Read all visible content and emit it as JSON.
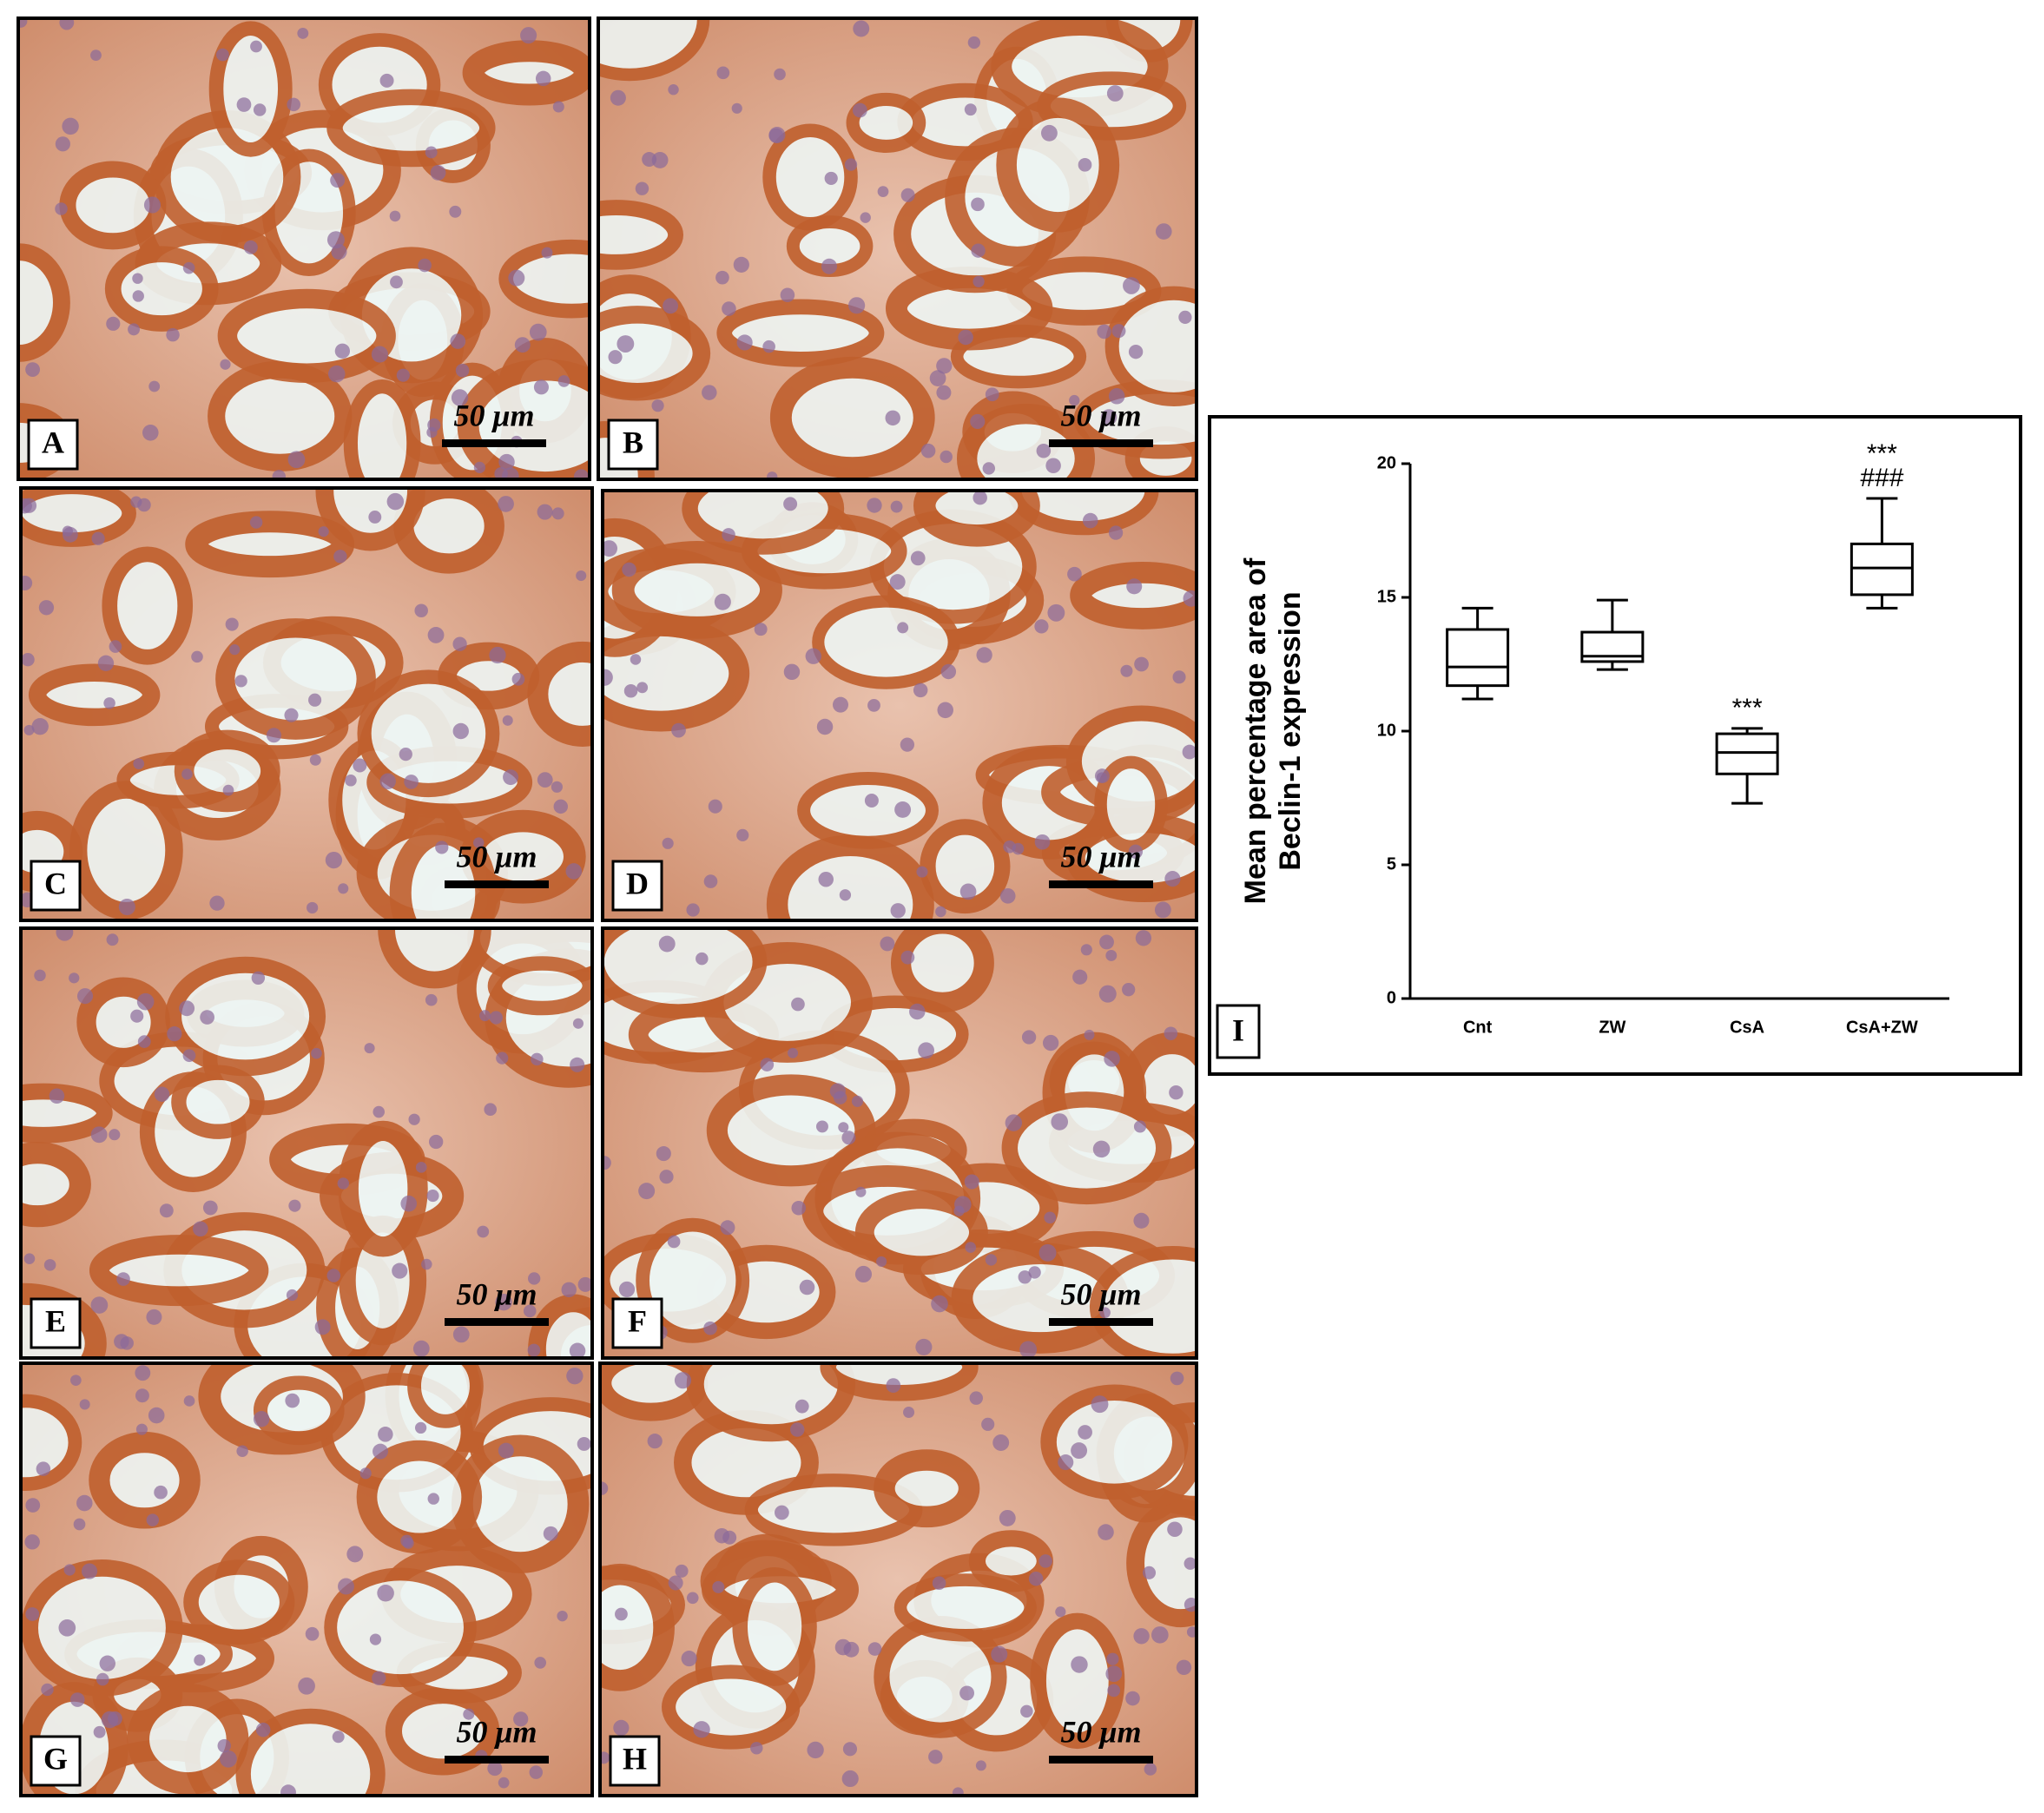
{
  "panels": [
    {
      "label": "A",
      "scale": "50 μm"
    },
    {
      "label": "B",
      "scale": "50 μm"
    },
    {
      "label": "C",
      "scale": "50 μm"
    },
    {
      "label": "D",
      "scale": "50 μm"
    },
    {
      "label": "E",
      "scale": "50 μm"
    },
    {
      "label": "F",
      "scale": "50 μm"
    },
    {
      "label": "G",
      "scale": "50 μm"
    },
    {
      "label": "H",
      "scale": "50 μm"
    }
  ],
  "chart_data": {
    "type": "box",
    "panel_label": "I",
    "ylabel": [
      "Mean percentage area of",
      "Beclin-1 expression"
    ],
    "categories": [
      "Cnt",
      "ZW",
      "CsA",
      "CsA+ZW"
    ],
    "min": [
      11.2,
      12.3,
      7.3,
      14.6
    ],
    "q1": [
      11.7,
      12.6,
      8.4,
      15.1
    ],
    "median": [
      12.4,
      12.8,
      9.2,
      16.1
    ],
    "q3": [
      13.8,
      13.7,
      9.9,
      17.0
    ],
    "max": [
      14.6,
      14.9,
      10.1,
      18.7
    ],
    "annotations": [
      {
        "category": "CsA",
        "lines": [
          "***"
        ]
      },
      {
        "category": "CsA+ZW",
        "lines": [
          "***",
          "###"
        ]
      }
    ],
    "ylim": [
      0,
      20
    ],
    "yticks": [
      0,
      5,
      10,
      15,
      20
    ],
    "color": "#000000"
  }
}
